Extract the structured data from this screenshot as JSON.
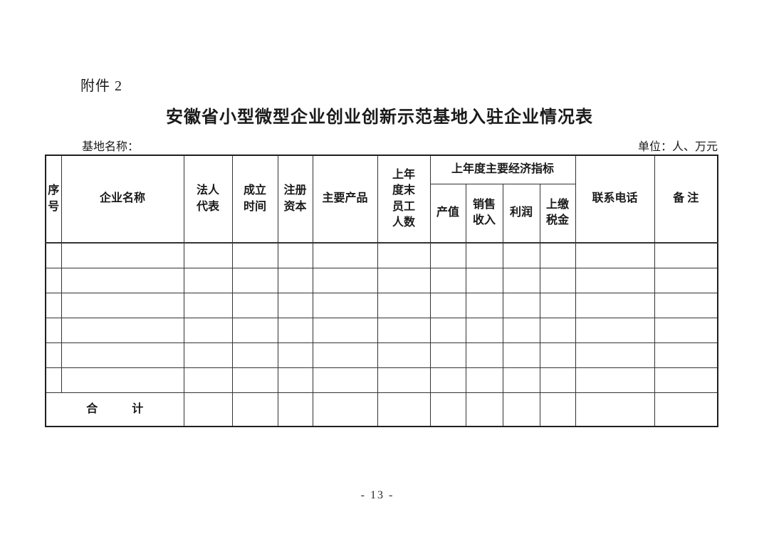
{
  "page": {
    "attachment_label": "附件 2",
    "title": "安徽省小型微型企业创业创新示范基地入驻企业情况表",
    "base_name_label": "基地名称：",
    "unit_label": "单位：人、万元",
    "page_number": "- 13 -"
  },
  "table": {
    "column_count": 13,
    "body_row_count": 6,
    "group_header": "上年度主要经济指标",
    "header": {
      "seq": "序\n号",
      "company": "企业名称",
      "legal_rep": "法人\n代表",
      "founded": "成立\n时间",
      "capital": "注册\n资本",
      "products": "主要产品",
      "staff": "上年\n度末\n员工\n人数",
      "output": "产值",
      "sales": "销售\n收入",
      "profit": "利润",
      "tax": "上缴\n税金",
      "phone": "联系电话",
      "remarks": "备 注"
    },
    "total_row": {
      "label": "合　　　计"
    }
  },
  "colors": {
    "text": "#1a1a1a",
    "border": "#333333",
    "background": "#ffffff"
  }
}
